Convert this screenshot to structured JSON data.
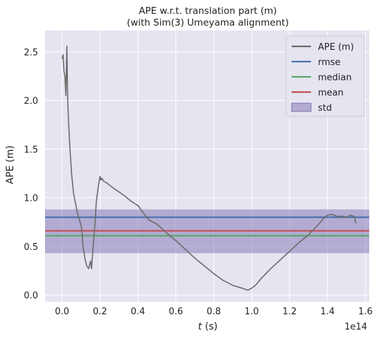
{
  "chart_data": {
    "type": "line",
    "title": "APE w.r.t. translation part (m)",
    "subtitle": "(with Sim(3) Umeyama alignment)",
    "xlabel_italic": "t",
    "xlabel_unit": " (s)",
    "ylabel": "APE (m)",
    "x_offset_label": "1e14",
    "xlim": [
      -0.09,
      1.62
    ],
    "ylim": [
      -0.07,
      2.72
    ],
    "x_ticks": [
      0.0,
      0.2,
      0.4,
      0.6,
      0.8,
      1.0,
      1.2,
      1.4,
      1.6
    ],
    "x_tick_labels": [
      "0.0",
      "0.2",
      "0.4",
      "0.6",
      "0.8",
      "1.0",
      "1.2",
      "1.4",
      "1.6"
    ],
    "y_ticks": [
      0.0,
      0.5,
      1.0,
      1.5,
      2.0,
      2.5
    ],
    "y_tick_labels": [
      "0.0",
      "0.5",
      "1.0",
      "1.5",
      "2.0",
      "2.5"
    ],
    "grid": true,
    "legend_position": "top-right",
    "series": [
      {
        "name": "APE (m)",
        "color": "#6a6a6a",
        "x": [
          0.0,
          0.005,
          0.01,
          0.015,
          0.02,
          0.025,
          0.03,
          0.035,
          0.04,
          0.05,
          0.06,
          0.07,
          0.08,
          0.09,
          0.1,
          0.105,
          0.11,
          0.12,
          0.13,
          0.14,
          0.15,
          0.155,
          0.16,
          0.17,
          0.175,
          0.18,
          0.19,
          0.2,
          0.205,
          0.21,
          0.22,
          0.23,
          0.25,
          0.27,
          0.3,
          0.33,
          0.36,
          0.4,
          0.43,
          0.46,
          0.5,
          0.55,
          0.6,
          0.65,
          0.7,
          0.75,
          0.8,
          0.85,
          0.9,
          0.95,
          0.98,
          1.0,
          1.02,
          1.05,
          1.1,
          1.15,
          1.2,
          1.25,
          1.3,
          1.35,
          1.38,
          1.4,
          1.42,
          1.45,
          1.48,
          1.5,
          1.52,
          1.54,
          1.55
        ],
        "y": [
          2.43,
          2.47,
          2.3,
          2.25,
          2.05,
          2.56,
          1.98,
          1.75,
          1.55,
          1.25,
          1.05,
          0.95,
          0.85,
          0.78,
          0.72,
          0.65,
          0.5,
          0.38,
          0.3,
          0.27,
          0.35,
          0.27,
          0.4,
          0.65,
          0.78,
          0.95,
          1.1,
          1.22,
          1.18,
          1.2,
          1.17,
          1.16,
          1.13,
          1.1,
          1.06,
          1.02,
          0.97,
          0.92,
          0.84,
          0.77,
          0.73,
          0.64,
          0.56,
          0.47,
          0.38,
          0.3,
          0.22,
          0.15,
          0.1,
          0.07,
          0.05,
          0.07,
          0.1,
          0.17,
          0.27,
          0.36,
          0.45,
          0.54,
          0.62,
          0.72,
          0.79,
          0.82,
          0.83,
          0.81,
          0.81,
          0.8,
          0.82,
          0.81,
          0.74
        ]
      }
    ],
    "stats": {
      "rmse": {
        "label": "rmse",
        "value": 0.8,
        "color": "#4c72b0"
      },
      "median": {
        "label": "median",
        "value": 0.61,
        "color": "#55a868"
      },
      "mean": {
        "label": "mean",
        "value": 0.66,
        "color": "#c44e52"
      },
      "std": {
        "label": "std",
        "band": [
          0.43,
          0.88
        ],
        "color": "#8172b2"
      }
    },
    "colors": {
      "plot_background": "#e5e5f0",
      "grid": "#ffffff",
      "text": "#222222"
    }
  }
}
